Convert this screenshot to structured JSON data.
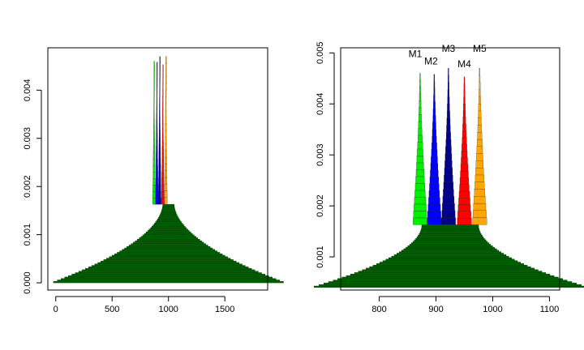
{
  "chart_data": [
    {
      "type": "bar",
      "orientation": "horizontal-stacked-histogram",
      "title": "",
      "xlabel": "",
      "ylabel": "",
      "xlim": [
        -70,
        1880
      ],
      "ylim": [
        -0.00015,
        0.00488
      ],
      "xticks": [
        0,
        500,
        1000,
        1500
      ],
      "yticks": [
        0.0,
        0.001,
        0.002,
        0.003,
        0.004
      ],
      "ytick_labels": [
        "0.000",
        "0.001",
        "0.002",
        "0.003",
        "0.004"
      ],
      "grid": false,
      "base_distribution": {
        "name": "",
        "color": "#006400",
        "center": 1000,
        "half_width": 920,
        "y_bottom": 0.0,
        "y_top": 0.00163,
        "decay": 0.0046,
        "steps": 54
      },
      "series": [
        {
          "name": "",
          "center": 872,
          "half_width": 12,
          "y_bottom": 0.00163,
          "peak": 0.0046,
          "color": "#00ee00"
        },
        {
          "name": "",
          "center": 897,
          "half_width": 12,
          "y_bottom": 0.00163,
          "peak": 0.00458,
          "color": "#0000ff"
        },
        {
          "name": "",
          "center": 922,
          "half_width": 12,
          "y_bottom": 0.00163,
          "peak": 0.0047,
          "color": "#00008b"
        },
        {
          "name": "",
          "center": 950,
          "half_width": 12,
          "y_bottom": 0.00163,
          "peak": 0.00453,
          "color": "#ff0000"
        },
        {
          "name": "",
          "center": 977,
          "half_width": 12,
          "y_bottom": 0.00163,
          "peak": 0.0047,
          "color": "#ffa500"
        }
      ],
      "overlap_band": {
        "x_from": 860,
        "x_to": 922,
        "y_from": 0.00163,
        "y_to": 0.0017,
        "color": "#bb88bb"
      }
    },
    {
      "type": "bar",
      "orientation": "horizontal-stacked-histogram",
      "title": "",
      "xlabel": "",
      "ylabel": "",
      "xlim": [
        732,
        1118
      ],
      "ylim": [
        0.00035,
        0.0051
      ],
      "xticks": [
        800,
        900,
        1000,
        1100
      ],
      "yticks": [
        0.001,
        0.002,
        0.003,
        0.004,
        0.005
      ],
      "ytick_labels": [
        "0.001",
        "0.002",
        "0.003",
        "0.004",
        "0.005"
      ],
      "grid": false,
      "base_distribution": {
        "name": "",
        "color": "#006400",
        "center": 925,
        "half_width": 190,
        "y_bottom": 0.0004,
        "y_top": 0.00163,
        "decay": 0.018,
        "steps": 42
      },
      "series": [
        {
          "name": "M1",
          "center": 872,
          "half_width": 12,
          "y_bottom": 0.00163,
          "peak": 0.0046,
          "color": "#00ee00"
        },
        {
          "name": "M2",
          "center": 897,
          "half_width": 12,
          "y_bottom": 0.00163,
          "peak": 0.00458,
          "color": "#0000ff"
        },
        {
          "name": "M3",
          "center": 922,
          "half_width": 12,
          "y_bottom": 0.00163,
          "peak": 0.0047,
          "color": "#00008b"
        },
        {
          "name": "M4",
          "center": 950,
          "half_width": 12,
          "y_bottom": 0.00163,
          "peak": 0.00453,
          "color": "#ff0000"
        },
        {
          "name": "M5",
          "center": 977,
          "half_width": 12,
          "y_bottom": 0.00163,
          "peak": 0.0047,
          "color": "#ffa500"
        }
      ],
      "overlap_band": {
        "x_from": 860,
        "x_to": 922,
        "y_from": 0.00163,
        "y_to": 0.0017,
        "color": "#bb88bb"
      }
    }
  ]
}
